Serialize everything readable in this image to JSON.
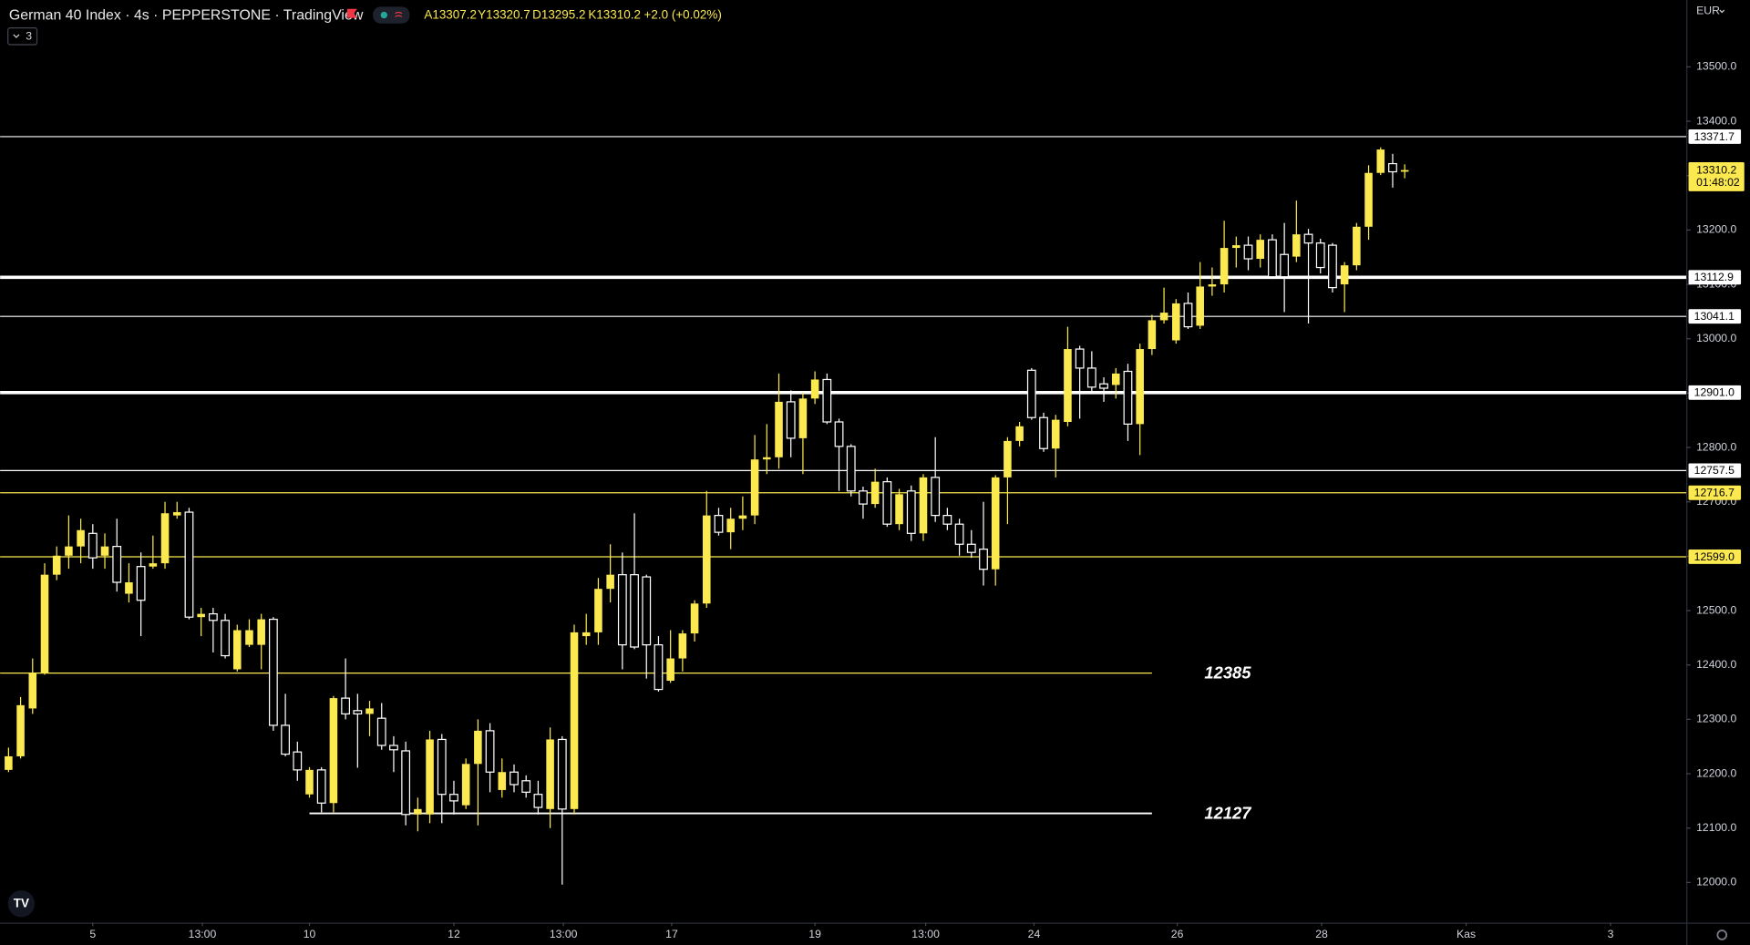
{
  "chart_data": {
    "type": "candlestick",
    "title": "German 40 Index · 4s · PEPPERSTONE · TradingView",
    "ohlc_text": [
      "A13307.2",
      "Y13320.7",
      "D13295.2",
      "K13310.2",
      "+2.0 (+0.02%)"
    ],
    "indicator_count": 3,
    "currency": "EUR",
    "countdown": "01:48:02",
    "up_color": "#fbe94f",
    "down_color": "#ffffff",
    "xlim": [
      -0.7,
      139.3
    ],
    "ylim": [
      11926,
      13623
    ],
    "yticks": [
      {
        "value": 12000,
        "label": "12000.0"
      },
      {
        "value": 12100,
        "label": "12100.0"
      },
      {
        "value": 12200,
        "label": "12200.0"
      },
      {
        "value": 12300,
        "label": "12300.0"
      },
      {
        "value": 12400,
        "label": "12400.0"
      },
      {
        "value": 12500,
        "label": "12500.0"
      },
      {
        "value": 12600,
        "label": "12600.0"
      },
      {
        "value": 12700,
        "label": "12700.0"
      },
      {
        "value": 12800,
        "label": "12800.0"
      },
      {
        "value": 12900,
        "label": "12900.0"
      },
      {
        "value": 13000,
        "label": "13000.0"
      },
      {
        "value": 13100,
        "label": "13100.0"
      },
      {
        "value": 13200,
        "label": "13200.0"
      },
      {
        "value": 13300,
        "label": "13300.0"
      },
      {
        "value": 13400,
        "label": "13400.0"
      },
      {
        "value": 13500,
        "label": "13500.0"
      }
    ],
    "xticks": [
      {
        "value": 7,
        "label": "5"
      },
      {
        "value": 16.1,
        "label": "13:00"
      },
      {
        "value": 25,
        "label": "10"
      },
      {
        "value": 37,
        "label": "12"
      },
      {
        "value": 46.1,
        "label": "13:00"
      },
      {
        "value": 55.1,
        "label": "17"
      },
      {
        "value": 67,
        "label": "19"
      },
      {
        "value": 76.2,
        "label": "13:00"
      },
      {
        "value": 85.2,
        "label": "24"
      },
      {
        "value": 97.1,
        "label": "26"
      },
      {
        "value": 109.1,
        "label": "28"
      },
      {
        "value": 121.1,
        "label": "Kas"
      },
      {
        "value": 133.1,
        "label": "3"
      }
    ],
    "levels": [
      {
        "value": 13371.7,
        "color": "#ffffff",
        "width": 1,
        "style": "line"
      },
      {
        "value": 13112.9,
        "color": "#ffffff",
        "width": 3,
        "style": "line"
      },
      {
        "value": 13041.1,
        "color": "#ffffff",
        "width": 1,
        "style": "line"
      },
      {
        "value": 12901,
        "label": "12901.0",
        "color": "#ffffff",
        "width": 3,
        "style": "line"
      },
      {
        "value": 12757.5,
        "color": "#ffffff",
        "width": 1,
        "style": "line"
      },
      {
        "value": 12716.7,
        "color": "#fbe94f",
        "width": 1,
        "style": "line"
      },
      {
        "value": 12599,
        "label": "12599.0",
        "color": "#fbe94f",
        "width": 1,
        "style": "line"
      },
      {
        "value": 12385,
        "color": "#fbe94f",
        "width": 1,
        "style": "annotation",
        "x_end": 95
      },
      {
        "value": 12127,
        "color": "#ffffff",
        "width": 1.5,
        "style": "annotation",
        "x_start": 25,
        "x_end": 95
      }
    ],
    "open": [
      12207,
      12232,
      12320,
      12386,
      12566,
      12601,
      12618,
      12642,
      12601,
      12618,
      12531,
      12581,
      12581,
      12587,
      12675,
      12681,
      12488,
      12494,
      12482,
      12392,
      12437,
      12437,
      12484,
      12289,
      12240,
      12162,
      12207,
      12146,
      12339,
      12316,
      12310,
      12302,
      12252,
      12242,
      12125,
      12125,
      12263,
      12162,
      12142,
      12218,
      12279,
      12170,
      12203,
      12187,
      12162,
      12135,
      12263,
      12135,
      12453,
      12460,
      12540,
      12566,
      12566,
      12562,
      12437,
      12371,
      12412,
      12458,
      12513,
      12675,
      12644,
      12669,
      12675,
      12778,
      12782,
      12884,
      12817,
      12890,
      12925,
      12847,
      12802,
      12720,
      12696,
      12737,
      12659,
      12720,
      12642,
      12745,
      12675,
      12659,
      12622,
      12613,
      12576,
      12745,
      12812,
      12942,
      12855,
      12798,
      12847,
      12981,
      12946,
      12917,
      12915,
      12940,
      12843,
      12981,
      13034,
      12997,
      13065,
      13024,
      13096,
      13100,
      13167,
      13172,
      13147,
      13182,
      13155,
      13151,
      13192,
      13176,
      13172,
      13100,
      13135,
      13206,
      13305,
      13322,
      13307.2
    ],
    "high": [
      12248,
      12341,
      12412,
      12587,
      12618,
      12675,
      12669,
      12659,
      12642,
      12669,
      12587,
      12607,
      12638,
      12700,
      12700,
      12689,
      12505,
      12505,
      12494,
      12474,
      12484,
      12494,
      12488,
      12347,
      12259,
      12212,
      12212,
      12343,
      12412,
      12347,
      12334,
      12330,
      12269,
      12259,
      12156,
      12279,
      12273,
      12187,
      12228,
      12300,
      12293,
      12228,
      12217,
      12197,
      12187,
      12285,
      12269,
      12474,
      12494,
      12560,
      12622,
      12607,
      12679,
      12566,
      12453,
      12464,
      12464,
      12519,
      12720,
      12689,
      12689,
      12710,
      12823,
      12843,
      12936,
      12905,
      12901,
      12940,
      12936,
      12853,
      12806,
      12728,
      12761,
      12745,
      12724,
      12730,
      12751,
      12819,
      12689,
      12669,
      12648,
      12700,
      12749,
      12819,
      12847,
      12946,
      12864,
      12860,
      13022,
      12987,
      12977,
      12929,
      12946,
      12954,
      12991,
      13044,
      13094,
      13073,
      13085,
      13141,
      13131,
      13217,
      13188,
      13188,
      13192,
      13192,
      13213,
      13254,
      13202,
      13184,
      13176,
      13141,
      13213,
      13319,
      13352,
      13340,
      13320.7
    ],
    "low": [
      12203,
      12228,
      12310,
      12382,
      12556,
      12577,
      12587,
      12577,
      12577,
      12535,
      12515,
      12453,
      12577,
      12577,
      12669,
      12484,
      12453,
      12423,
      12412,
      12388,
      12433,
      12392,
      12279,
      12232,
      12187,
      12156,
      12129,
      12129,
      12300,
      12211,
      12269,
      12244,
      12203,
      12105,
      12094,
      12109,
      12109,
      12125,
      12135,
      12105,
      12166,
      12156,
      12166,
      12156,
      12125,
      12100,
      11996,
      12125,
      12437,
      12437,
      12515,
      12392,
      12429,
      12375,
      12351,
      12367,
      12388,
      12443,
      12505,
      12638,
      12613,
      12648,
      12659,
      12751,
      12761,
      12782,
      12751,
      12880,
      12843,
      12720,
      12710,
      12669,
      12689,
      12654,
      12648,
      12628,
      12628,
      12663,
      12648,
      12601,
      12597,
      12546,
      12546,
      12659,
      12802,
      12851,
      12792,
      12745,
      12839,
      12853,
      12901,
      12884,
      12890,
      12812,
      12786,
      12970,
      13028,
      12991,
      13018,
      13018,
      13079,
      13085,
      13131,
      13126,
      13131,
      13110,
      13049,
      13141,
      13028,
      13120,
      13085,
      13049,
      13126,
      13182,
      13301,
      13278,
      13295.2
    ],
    "close": [
      12232,
      12326,
      12386,
      12566,
      12601,
      12618,
      12648,
      12597,
      12618,
      12552,
      12552,
      12519,
      12587,
      12679,
      12681,
      12488,
      12494,
      12482,
      12417,
      12464,
      12464,
      12484,
      12289,
      12236,
      12207,
      12207,
      12146,
      12339,
      12310,
      12310,
      12320,
      12252,
      12244,
      12125,
      12135,
      12263,
      12162,
      12150,
      12218,
      12279,
      12203,
      12203,
      12180,
      12166,
      12138,
      12263,
      12135,
      12460,
      12460,
      12540,
      12566,
      12437,
      12433,
      12437,
      12355,
      12412,
      12458,
      12513,
      12675,
      12644,
      12669,
      12675,
      12778,
      12782,
      12884,
      12817,
      12890,
      12925,
      12847,
      12802,
      12720,
      12696,
      12737,
      12659,
      12714,
      12642,
      12745,
      12675,
      12659,
      12622,
      12607,
      12576,
      12745,
      12812,
      12839,
      12855,
      12798,
      12851,
      12981,
      12946,
      12911,
      12909,
      12936,
      12843,
      12981,
      13034,
      13048,
      13065,
      13022,
      13096,
      13100,
      13167,
      13172,
      13147,
      13182,
      13114,
      13114,
      13192,
      13176,
      13131,
      13094,
      13135,
      13206,
      13305,
      13348,
      13307,
      13310.2
    ]
  }
}
